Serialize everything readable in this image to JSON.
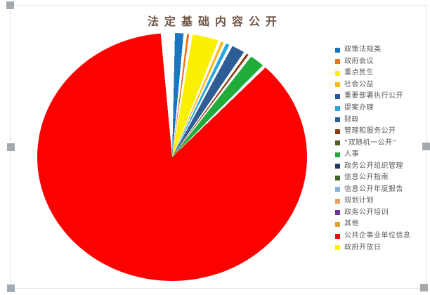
{
  "title": {
    "text": "法定基础内容公开",
    "color": "#6f5646"
  },
  "selection": {
    "handle_color": "#a5aab1"
  },
  "chart_data": {
    "type": "pie",
    "title": "法定基础内容公开",
    "legend_position": "right",
    "start_angle_deg": 0,
    "slice_border_color": "#ffffff",
    "series": [
      {
        "name": "政策法规类",
        "color": "#1b75c0",
        "percent": 1.2
      },
      {
        "name": "政府会议",
        "color": "#e8751f",
        "percent": 0.3
      },
      {
        "name": "重点民生",
        "color": "#faf001",
        "percent": 3.4
      },
      {
        "name": "社会公益",
        "color": "#ffb819",
        "percent": 0.3
      },
      {
        "name": "重要部署执行公开",
        "color": "#2f5597",
        "percent": 0.1
      },
      {
        "name": "提案办理",
        "color": "#29a8e0",
        "percent": 0.5
      },
      {
        "name": "财政",
        "color": "#2e5c94",
        "percent": 1.7
      },
      {
        "name": "管理和服务公开",
        "color": "#8a3c10",
        "percent": 0.3
      },
      {
        "name": "“双随机一公开”",
        "color": "#4e5b2b",
        "percent": 0.1
      },
      {
        "name": "人事",
        "color": "#1fac3b",
        "percent": 1.8
      },
      {
        "name": "政务公开组织管理",
        "color": "#203864",
        "percent": 0.1
      },
      {
        "name": "信息公开指南",
        "color": "#41652a",
        "percent": 0.1
      },
      {
        "name": "信息公开年度报告",
        "color": "#8aaedc",
        "percent": 0.1
      },
      {
        "name": "规划计划",
        "color": "#ee9c60",
        "percent": 0.1
      },
      {
        "name": "政务公开培训",
        "color": "#6c34a2",
        "percent": 0.1
      },
      {
        "name": "其他",
        "color": "#dca42e",
        "percent": 0.1
      },
      {
        "name": "公共企事业单位信息",
        "color": "#fb0200",
        "percent": 89.5
      },
      {
        "name": "政府开放日",
        "color": "#fbf404",
        "percent": 0.2
      }
    ],
    "segments": [
      {
        "color": "#ffffff",
        "from": 0.0,
        "to": 1.3
      },
      {
        "color": "#1b75c0",
        "from": 1.3,
        "to": 5.3
      },
      {
        "color": "#ffffff",
        "from": 5.3,
        "to": 6.9
      },
      {
        "color": "#e8751f",
        "from": 6.9,
        "to": 7.9
      },
      {
        "color": "#ffffff",
        "from": 7.9,
        "to": 9.5
      },
      {
        "color": "#faf001",
        "from": 9.5,
        "to": 21.6
      },
      {
        "color": "#ffffff",
        "from": 21.6,
        "to": 23.0
      },
      {
        "color": "#ffb819",
        "from": 23.0,
        "to": 24.2
      },
      {
        "color": "#ffffff",
        "from": 24.2,
        "to": 25.4
      },
      {
        "color": "#29a8e0",
        "from": 25.4,
        "to": 27.1
      },
      {
        "color": "#ffffff",
        "from": 27.1,
        "to": 28.5
      },
      {
        "color": "#2e5c94",
        "from": 28.5,
        "to": 34.4
      },
      {
        "color": "#ffffff",
        "from": 34.4,
        "to": 35.8
      },
      {
        "color": "#8a3c10",
        "from": 35.8,
        "to": 36.8
      },
      {
        "color": "#ffffff",
        "from": 36.8,
        "to": 38.2
      },
      {
        "color": "#1fac3b",
        "from": 38.2,
        "to": 44.7
      },
      {
        "color": "#ffffff",
        "from": 44.7,
        "to": 46.2
      },
      {
        "color": "#fb0200",
        "from": 46.2,
        "to": 354.7
      },
      {
        "color": "#ffffff",
        "from": 354.7,
        "to": 360.0
      }
    ]
  }
}
